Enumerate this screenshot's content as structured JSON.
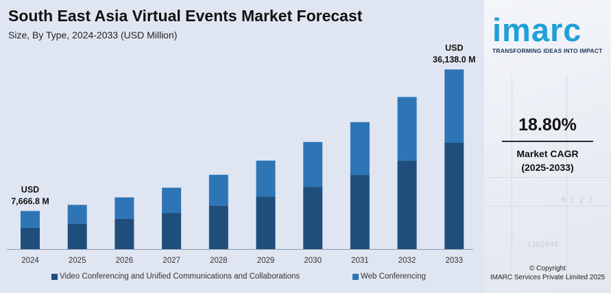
{
  "header": {
    "title": "South East Asia Virtual Events Market Forecast",
    "subtitle": "Size, By Type, 2024-2033 (USD Million)"
  },
  "chart_data": {
    "type": "bar",
    "stacked": true,
    "categories": [
      "2024",
      "2025",
      "2026",
      "2027",
      "2028",
      "2029",
      "2030",
      "2031",
      "2032",
      "2033"
    ],
    "series": [
      {
        "name": "Video Conferencing and Unified Communications and Collaborations",
        "color": "#1f4e7d",
        "values": [
          4300,
          5150,
          6100,
          7250,
          8750,
          10550,
          12500,
          14900,
          17800,
          21400
        ]
      },
      {
        "name": "Web Conferencing",
        "color": "#2e75b6",
        "values": [
          3366.8,
          3750,
          4300,
          5100,
          6200,
          7250,
          9050,
          10650,
          12800,
          14738
        ]
      }
    ],
    "annotations": [
      {
        "category": "2024",
        "currency": "USD",
        "label": "7,666.8 M"
      },
      {
        "category": "2033",
        "currency": "USD",
        "label": "36,138.0 M"
      }
    ],
    "ylim": [
      0,
      37000
    ],
    "grid": false,
    "legend_position": "bottom"
  },
  "sidebar": {
    "logo_text": "imarc",
    "tagline": "TRANSFORMING IDEAS INTO IMPACT",
    "cagr_value": "18.80%",
    "cagr_label_line1": "Market CAGR",
    "cagr_label_line2": "(2025-2033)",
    "copyright_line1": "© Copyright",
    "copyright_line2": "IMARC Services Private Limited 2025"
  }
}
